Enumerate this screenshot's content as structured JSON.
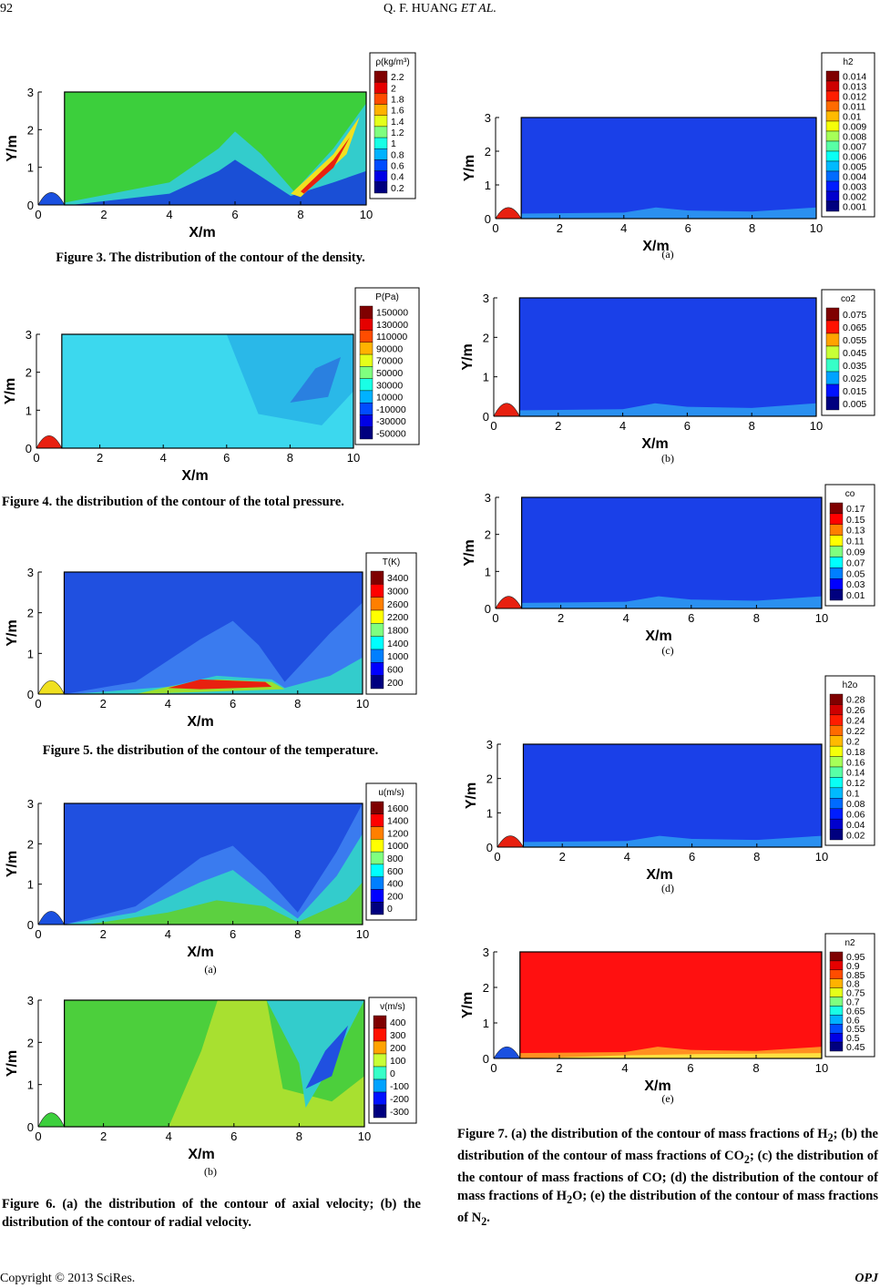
{
  "header": {
    "page": "92",
    "authors": "Q. F. HUANG",
    "etal": "ET AL."
  },
  "panels": [
    {
      "legend_title": "ρ(kg/m³)",
      "levels": [
        2.2,
        2,
        1.8,
        1.6,
        1.4,
        1.2,
        1,
        0.8,
        0.6,
        0.4,
        0.2
      ],
      "x_label": "X/m",
      "y_label": "Y/m",
      "xticks": [
        0,
        2,
        4,
        6,
        8,
        10
      ],
      "yticks": [
        0,
        1,
        2,
        3
      ]
    },
    {
      "legend_title": "P(Pa)",
      "levels": [
        150000,
        130000,
        110000,
        90000,
        70000,
        50000,
        30000,
        10000,
        -10000,
        -30000,
        -50000
      ],
      "x_label": "X/m",
      "y_label": "Y/m",
      "xticks": [
        0,
        2,
        4,
        6,
        8,
        10
      ],
      "yticks": [
        0,
        1,
        2,
        3
      ]
    },
    {
      "legend_title": "T(K)",
      "levels": [
        3400,
        3000,
        2600,
        2200,
        1800,
        1400,
        1000,
        600,
        200
      ],
      "x_label": "X/m",
      "y_label": "Y/m",
      "xticks": [
        0,
        2,
        4,
        6,
        8,
        10
      ],
      "yticks": [
        0,
        1,
        2,
        3
      ]
    },
    {
      "legend_title": "u(m/s)",
      "levels": [
        1600,
        1400,
        1200,
        1000,
        800,
        600,
        400,
        200,
        0
      ],
      "x_label": "X/m",
      "y_label": "Y/m",
      "xticks": [
        0,
        2,
        4,
        6,
        8,
        10
      ],
      "yticks": [
        0,
        1,
        2,
        3
      ],
      "sublabel": "(a)"
    },
    {
      "legend_title": "v(m/s)",
      "levels": [
        400,
        300,
        200,
        100,
        0,
        -100,
        -200,
        -300
      ],
      "x_label": "X/m",
      "y_label": "Y/m",
      "xticks": [
        0,
        2,
        4,
        6,
        8,
        10
      ],
      "yticks": [
        0,
        1,
        2,
        3
      ],
      "sublabel": "(b)"
    },
    {
      "legend_title": "h2",
      "levels": [
        0.014,
        0.013,
        0.012,
        0.011,
        0.01,
        0.009,
        0.008,
        0.007,
        0.006,
        0.005,
        0.004,
        0.003,
        0.002,
        0.001
      ],
      "x_label": "X/m",
      "y_label": "Y/m",
      "xticks": [
        0,
        2,
        4,
        6,
        8,
        10
      ],
      "yticks": [
        0,
        1,
        2,
        3
      ],
      "sublabel": "(a)"
    },
    {
      "legend_title": "co2",
      "levels": [
        0.075,
        0.065,
        0.055,
        0.045,
        0.035,
        0.025,
        0.015,
        0.005
      ],
      "x_label": "X/m",
      "y_label": "Y/m",
      "xticks": [
        0,
        2,
        4,
        6,
        8,
        10
      ],
      "yticks": [
        0,
        1,
        2,
        3
      ],
      "sublabel": "(b)"
    },
    {
      "legend_title": "co",
      "levels": [
        0.17,
        0.15,
        0.13,
        0.11,
        0.09,
        0.07,
        0.05,
        0.03,
        0.01
      ],
      "x_label": "X/m",
      "y_label": "Y/m",
      "xticks": [
        0,
        2,
        4,
        6,
        8,
        10
      ],
      "yticks": [
        0,
        1,
        2,
        3
      ],
      "sublabel": "(c)"
    },
    {
      "legend_title": "h2o",
      "levels": [
        0.28,
        0.26,
        0.24,
        0.22,
        0.2,
        0.18,
        0.16,
        0.14,
        0.12,
        0.1,
        0.08,
        0.06,
        0.04,
        0.02
      ],
      "x_label": "X/m",
      "y_label": "Y/m",
      "xticks": [
        0,
        2,
        4,
        6,
        8,
        10
      ],
      "yticks": [
        0,
        1,
        2,
        3
      ],
      "sublabel": "(d)"
    },
    {
      "legend_title": "n2",
      "levels": [
        0.95,
        0.9,
        0.85,
        0.8,
        0.75,
        0.7,
        0.65,
        0.6,
        0.55,
        0.5,
        0.45
      ],
      "x_label": "X/m",
      "y_label": "Y/m",
      "xticks": [
        0,
        2,
        4,
        6,
        8,
        10
      ],
      "yticks": [
        0,
        1,
        2,
        3
      ],
      "sublabel": "(e)"
    }
  ],
  "captions": {
    "fig3": "Figure 3. The distribution of the contour of the density.",
    "fig4": "Figure 4. the distribution of the contour of the total pressure.",
    "fig5": "Figure 5. the distribution of the contour of the temperature.",
    "fig6": "Figure 6. (a) the distribution of the contour of axial velocity; (b) the distribution of the contour of radial velocity.",
    "fig7": [
      "Figure 7. (a) the distribution of the contour of mass fractions of H",
      "2",
      "; (b) the distribution of the contour of mass fractions of CO",
      "2",
      "; (c) the distribution of the contour of mass fractions of CO; (d) the distribution of the contour of mass fractions of H",
      "2",
      "O; (e) the distribution of the contour of mass fractions of N",
      "2",
      "."
    ]
  },
  "footer": {
    "copyright": "Copyright © 2013 SciRes.",
    "journal": "OPJ"
  }
}
